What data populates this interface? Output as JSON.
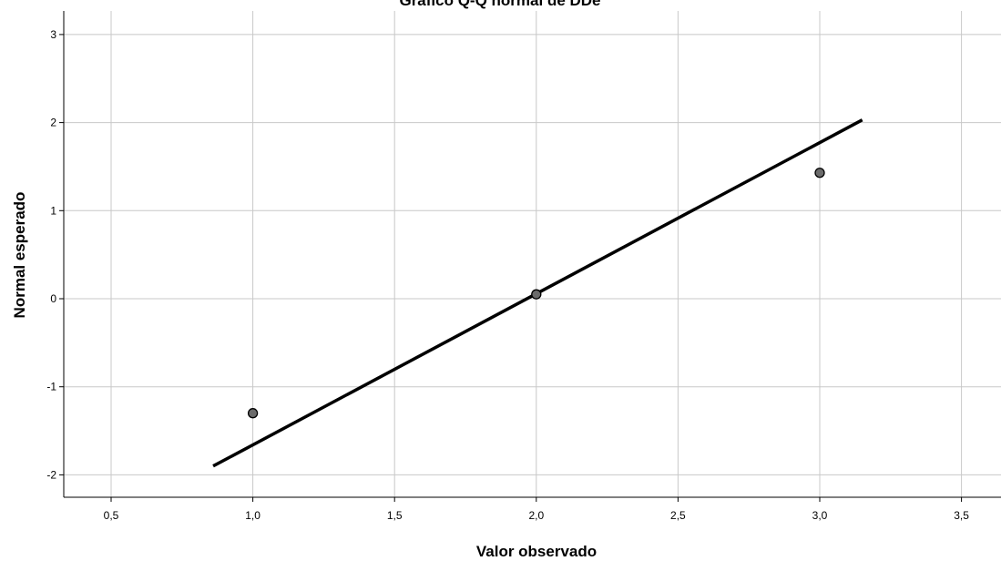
{
  "chart_data": {
    "type": "scatter",
    "title": "Gráfico Q-Q normal de DDe",
    "xlabel": "Valor observado",
    "ylabel": "Normal esperado",
    "xlim": [
      0.33,
      3.6
    ],
    "ylim": [
      -2.2,
      3.3
    ],
    "xticks": [
      0.5,
      1.0,
      1.5,
      2.0,
      2.5,
      3.0,
      3.5
    ],
    "xtick_labels": [
      "0,5",
      "1,0",
      "1,5",
      "2,0",
      "2,5",
      "3,0",
      "3,5"
    ],
    "yticks": [
      -2,
      -1,
      0,
      1,
      2,
      3
    ],
    "ytick_labels": [
      "-2",
      "-1",
      "0",
      "1",
      "2",
      "3"
    ],
    "grid": true,
    "series": [
      {
        "name": "",
        "type": "scatter",
        "x": [
          1.0,
          2.0,
          3.0
        ],
        "y": [
          -1.3,
          0.05,
          1.43
        ]
      },
      {
        "name": "",
        "type": "line",
        "x": [
          0.86,
          3.15
        ],
        "y": [
          -1.9,
          2.03
        ]
      }
    ],
    "colors": {
      "point_fill": "#6b6b6b",
      "point_stroke": "#000000",
      "line": "#000000",
      "grid": "#c8c8c8"
    }
  }
}
